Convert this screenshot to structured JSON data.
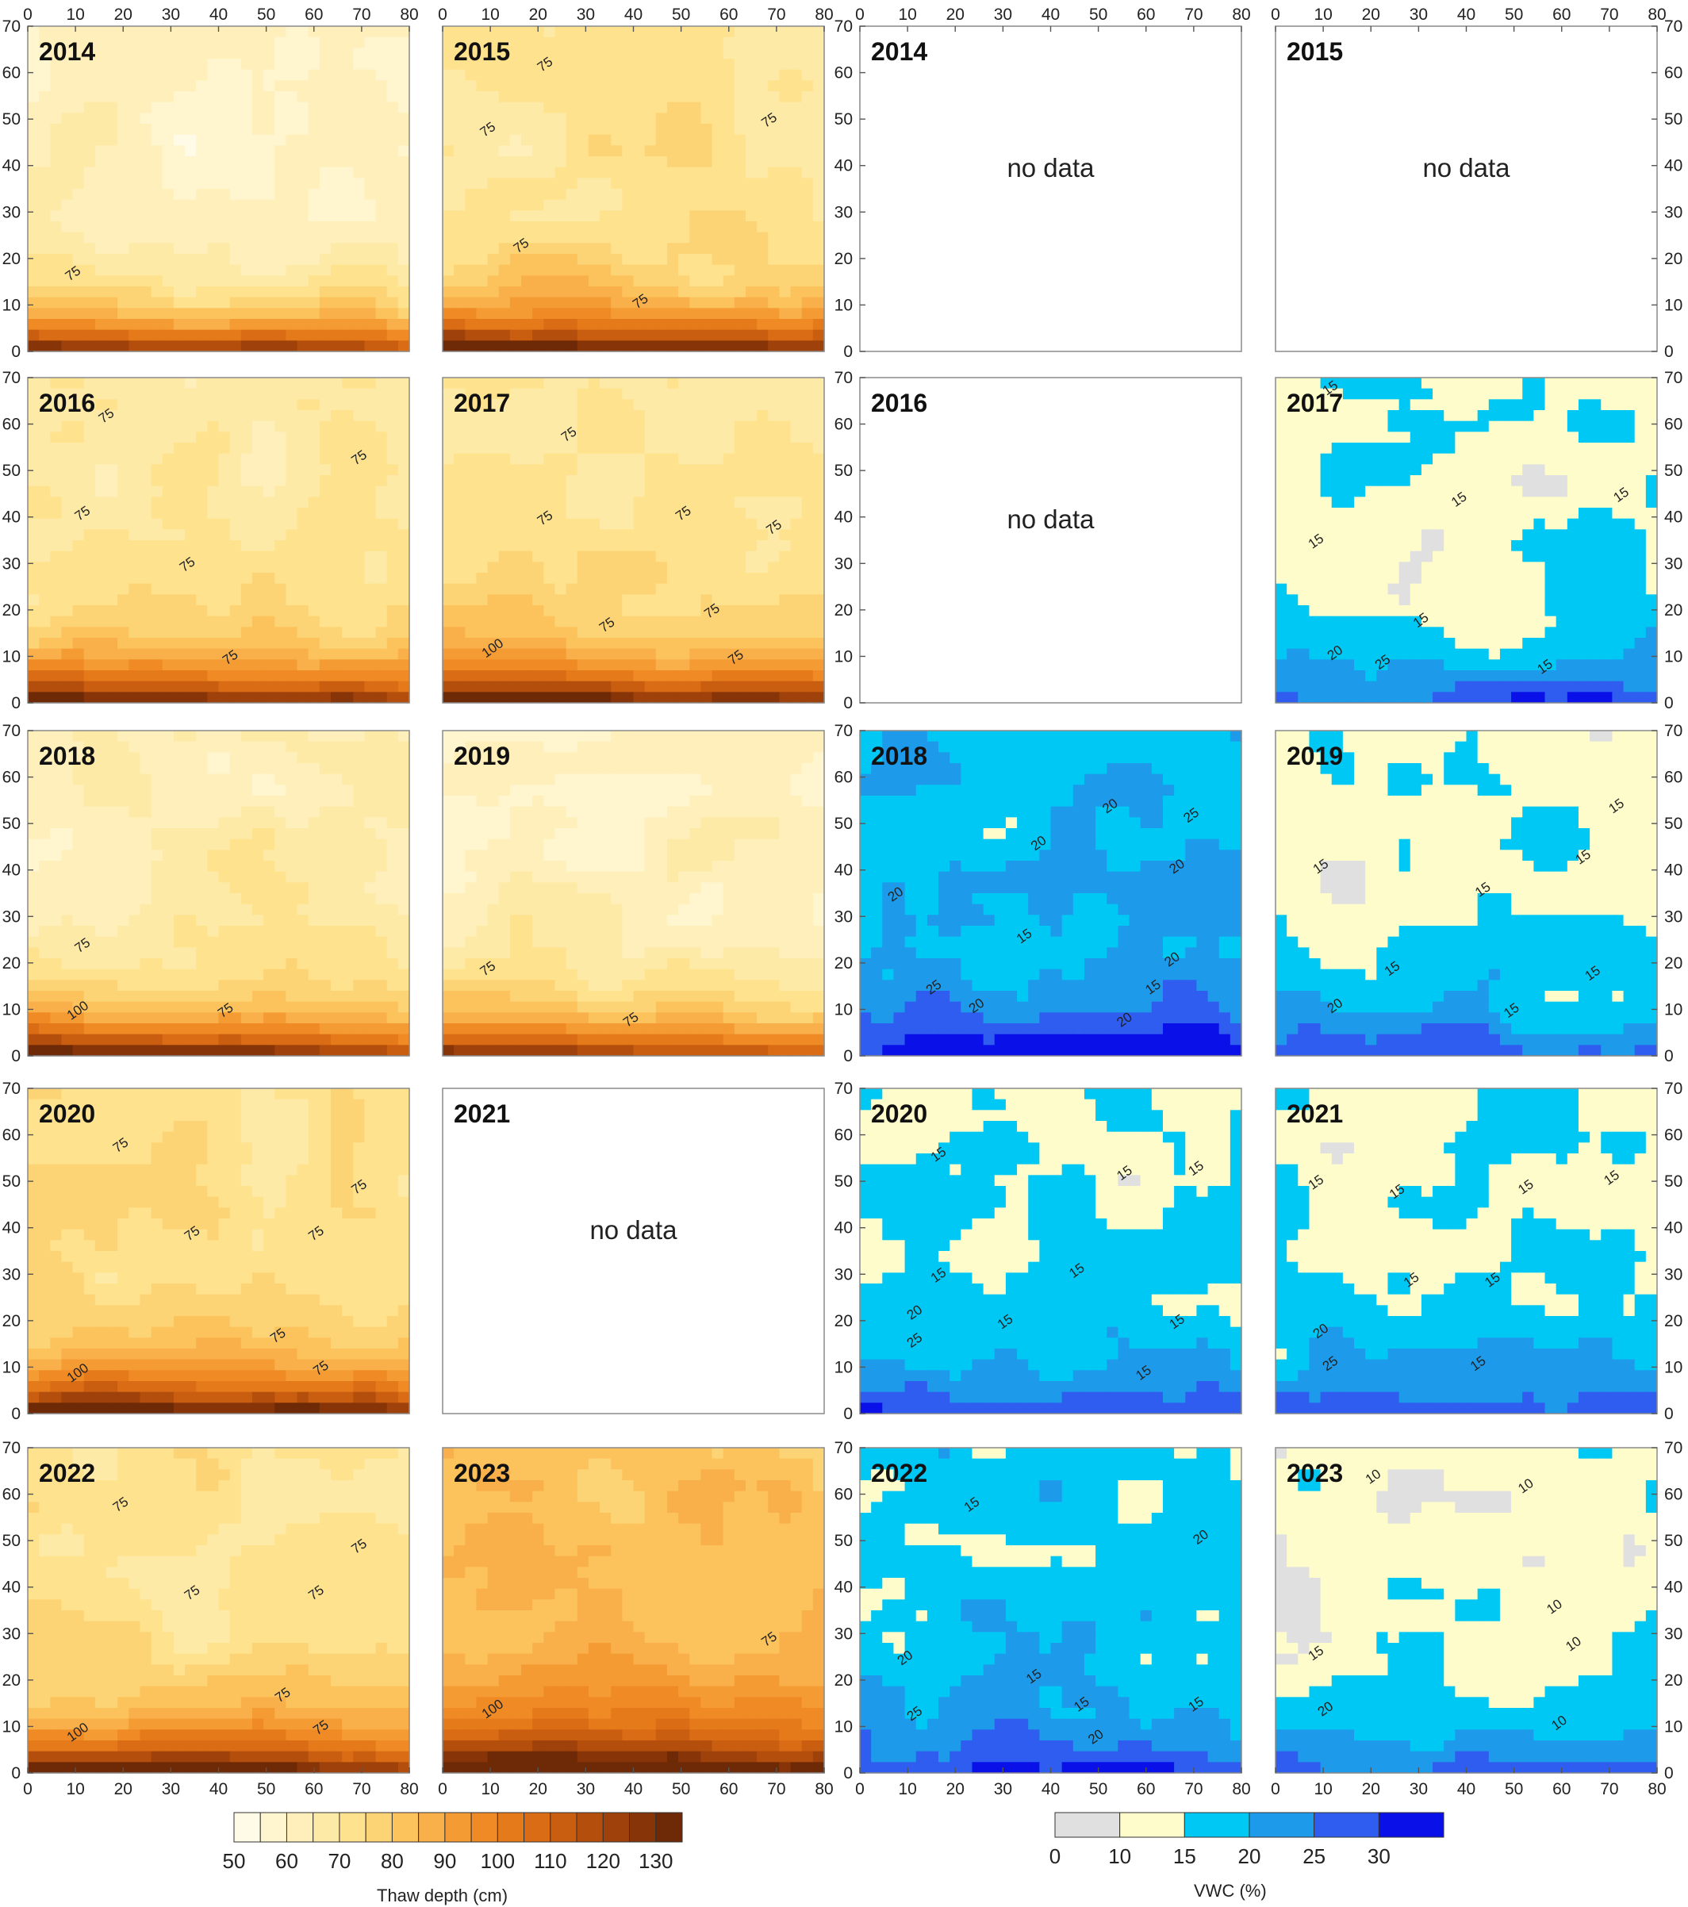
{
  "chart_data": {
    "type": "heatmap",
    "subtype": "contour",
    "x_axis": {
      "range": [
        0,
        80
      ],
      "ticks": [
        0,
        10,
        20,
        30,
        40,
        50,
        60,
        70,
        80
      ]
    },
    "y_axis": {
      "range": [
        0,
        70
      ],
      "ticks": [
        0,
        10,
        20,
        30,
        40,
        50,
        60,
        70
      ]
    },
    "grid": false,
    "thaw_depth": {
      "variable": "Thaw depth",
      "colorbar_label": "Thaw depth (cm)",
      "colorbar_ticks": [
        50,
        60,
        70,
        80,
        90,
        100,
        110,
        120,
        130
      ],
      "levels": [
        50,
        55,
        60,
        65,
        70,
        75,
        80,
        85,
        90,
        95,
        100,
        105,
        110,
        115,
        120,
        125,
        130,
        135
      ],
      "colors": [
        "#fffbe6",
        "#fff5cf",
        "#fff0bb",
        "#feeaa7",
        "#fee28d",
        "#fdd475",
        "#fcc35c",
        "#f9b04a",
        "#f59b34",
        "#ef8a25",
        "#e57a1b",
        "#d96c15",
        "#c95d10",
        "#b44e0c",
        "#9e410a",
        "#873508",
        "#6e2a06"
      ],
      "panels": [
        {
          "year": "2014",
          "no_data": false,
          "base": 66,
          "bias": -1,
          "contour_labels": [
            {
              "text": "75",
              "x": 10,
              "y": 16
            }
          ]
        },
        {
          "year": "2015",
          "no_data": false,
          "base": 72,
          "bias": 1,
          "contour_labels": [
            {
              "text": "75",
              "x": 22,
              "y": 61
            },
            {
              "text": "75",
              "x": 10,
              "y": 47
            },
            {
              "text": "75",
              "x": 69,
              "y": 49
            },
            {
              "text": "75",
              "x": 17,
              "y": 22
            },
            {
              "text": "75",
              "x": 42,
              "y": 10
            }
          ]
        },
        {
          "year": "2016",
          "no_data": false,
          "base": 71,
          "bias": 0,
          "contour_labels": [
            {
              "text": "75",
              "x": 17,
              "y": 61
            },
            {
              "text": "75",
              "x": 70,
              "y": 52
            },
            {
              "text": "75",
              "x": 12,
              "y": 40
            },
            {
              "text": "75",
              "x": 34,
              "y": 29
            },
            {
              "text": "75",
              "x": 43,
              "y": 9
            }
          ]
        },
        {
          "year": "2017",
          "no_data": false,
          "base": 72,
          "bias": 1,
          "contour_labels": [
            {
              "text": "75",
              "x": 27,
              "y": 57
            },
            {
              "text": "75",
              "x": 22,
              "y": 39
            },
            {
              "text": "75",
              "x": 51,
              "y": 40
            },
            {
              "text": "75",
              "x": 70,
              "y": 37
            },
            {
              "text": "75",
              "x": 35,
              "y": 16
            },
            {
              "text": "75",
              "x": 57,
              "y": 19
            },
            {
              "text": "75",
              "x": 62,
              "y": 9
            },
            {
              "text": "100",
              "x": 11,
              "y": 11
            }
          ]
        },
        {
          "year": "2018",
          "no_data": false,
          "base": 69,
          "bias": 0,
          "contour_labels": [
            {
              "text": "75",
              "x": 12,
              "y": 23
            },
            {
              "text": "100",
              "x": 11,
              "y": 9
            },
            {
              "text": "75",
              "x": 42,
              "y": 9
            }
          ]
        },
        {
          "year": "2019",
          "no_data": false,
          "base": 67,
          "bias": -1,
          "contour_labels": [
            {
              "text": "75",
              "x": 10,
              "y": 18
            },
            {
              "text": "75",
              "x": 40,
              "y": 7
            }
          ]
        },
        {
          "year": "2020",
          "no_data": false,
          "base": 75,
          "bias": 1,
          "contour_labels": [
            {
              "text": "75",
              "x": 20,
              "y": 57
            },
            {
              "text": "75",
              "x": 70,
              "y": 48
            },
            {
              "text": "75",
              "x": 35,
              "y": 38
            },
            {
              "text": "75",
              "x": 61,
              "y": 38
            },
            {
              "text": "75",
              "x": 53,
              "y": 16
            },
            {
              "text": "75",
              "x": 62,
              "y": 9
            },
            {
              "text": "100",
              "x": 11,
              "y": 8
            }
          ]
        },
        {
          "year": "2021",
          "no_data": true,
          "no_data_text": "no data"
        },
        {
          "year": "2022",
          "no_data": false,
          "base": 74,
          "bias": 1,
          "contour_labels": [
            {
              "text": "75",
              "x": 20,
              "y": 57
            },
            {
              "text": "75",
              "x": 70,
              "y": 48
            },
            {
              "text": "75",
              "x": 35,
              "y": 38
            },
            {
              "text": "75",
              "x": 61,
              "y": 38
            },
            {
              "text": "75",
              "x": 54,
              "y": 16
            },
            {
              "text": "75",
              "x": 62,
              "y": 9
            },
            {
              "text": "100",
              "x": 11,
              "y": 8
            }
          ]
        },
        {
          "year": "2023",
          "no_data": false,
          "base": 83,
          "bias": 2,
          "contour_labels": [
            {
              "text": "75",
              "x": 69,
              "y": 28
            },
            {
              "text": "100",
              "x": 11,
              "y": 13
            }
          ]
        }
      ]
    },
    "vwc": {
      "variable": "VWC",
      "colorbar_label": "VWC (%)",
      "colorbar_ticks": [
        0,
        10,
        15,
        20,
        25,
        30
      ],
      "levels": [
        0,
        10,
        15,
        20,
        25,
        30,
        35
      ],
      "colors": [
        "#e0e0e0",
        "#fffccc",
        "#00c8f5",
        "#1e9aeb",
        "#2f5df0",
        "#0a10e8"
      ],
      "panels": [
        {
          "year": "2014",
          "no_data": true,
          "no_data_text": "no data"
        },
        {
          "year": "2015",
          "no_data": true,
          "no_data_text": "no data"
        },
        {
          "year": "2016",
          "no_data": true,
          "no_data_text": "no data"
        },
        {
          "year": "2017",
          "no_data": false,
          "base": 14,
          "contour_labels": [
            {
              "text": "15",
              "x": 12,
              "y": 67
            },
            {
              "text": "15",
              "x": 39,
              "y": 43
            },
            {
              "text": "15",
              "x": 73,
              "y": 44
            },
            {
              "text": "15",
              "x": 9,
              "y": 34
            },
            {
              "text": "15",
              "x": 31,
              "y": 17
            },
            {
              "text": "20",
              "x": 13,
              "y": 10
            },
            {
              "text": "25",
              "x": 23,
              "y": 8
            },
            {
              "text": "15",
              "x": 57,
              "y": 7
            }
          ]
        },
        {
          "year": "2018",
          "no_data": false,
          "base": 20,
          "contour_labels": [
            {
              "text": "20",
              "x": 53,
              "y": 53
            },
            {
              "text": "25",
              "x": 70,
              "y": 51
            },
            {
              "text": "20",
              "x": 38,
              "y": 45
            },
            {
              "text": "20",
              "x": 67,
              "y": 40
            },
            {
              "text": "20",
              "x": 8,
              "y": 34
            },
            {
              "text": "15",
              "x": 35,
              "y": 25
            },
            {
              "text": "20",
              "x": 66,
              "y": 20
            },
            {
              "text": "15",
              "x": 62,
              "y": 14
            },
            {
              "text": "25",
              "x": 16,
              "y": 14
            },
            {
              "text": "20",
              "x": 25,
              "y": 10
            },
            {
              "text": "20",
              "x": 56,
              "y": 7
            }
          ]
        },
        {
          "year": "2019",
          "no_data": false,
          "base": 14,
          "contour_labels": [
            {
              "text": "15",
              "x": 72,
              "y": 53
            },
            {
              "text": "15",
              "x": 10,
              "y": 40
            },
            {
              "text": "15",
              "x": 65,
              "y": 42
            },
            {
              "text": "15",
              "x": 44,
              "y": 35
            },
            {
              "text": "15",
              "x": 25,
              "y": 18
            },
            {
              "text": "15",
              "x": 67,
              "y": 17
            },
            {
              "text": "20",
              "x": 13,
              "y": 10
            },
            {
              "text": "15",
              "x": 50,
              "y": 9
            }
          ]
        },
        {
          "year": "2020",
          "no_data": false,
          "base": 15,
          "contour_labels": [
            {
              "text": "15",
              "x": 17,
              "y": 55
            },
            {
              "text": "15",
              "x": 56,
              "y": 51
            },
            {
              "text": "15",
              "x": 71,
              "y": 52
            },
            {
              "text": "15",
              "x": 17,
              "y": 29
            },
            {
              "text": "15",
              "x": 46,
              "y": 30
            },
            {
              "text": "20",
              "x": 12,
              "y": 21
            },
            {
              "text": "15",
              "x": 31,
              "y": 19
            },
            {
              "text": "15",
              "x": 67,
              "y": 19
            },
            {
              "text": "25",
              "x": 12,
              "y": 15
            },
            {
              "text": "15",
              "x": 60,
              "y": 8
            }
          ]
        },
        {
          "year": "2021",
          "no_data": false,
          "base": 15,
          "contour_labels": [
            {
              "text": "15",
              "x": 9,
              "y": 49
            },
            {
              "text": "15",
              "x": 26,
              "y": 47
            },
            {
              "text": "15",
              "x": 53,
              "y": 48
            },
            {
              "text": "15",
              "x": 71,
              "y": 50
            },
            {
              "text": "15",
              "x": 29,
              "y": 28
            },
            {
              "text": "15",
              "x": 46,
              "y": 28
            },
            {
              "text": "20",
              "x": 10,
              "y": 17
            },
            {
              "text": "25",
              "x": 12,
              "y": 10
            },
            {
              "text": "15",
              "x": 43,
              "y": 10
            }
          ]
        },
        {
          "year": "2022",
          "no_data": false,
          "base": 18,
          "contour_labels": [
            {
              "text": "15",
              "x": 24,
              "y": 57
            },
            {
              "text": "20",
              "x": 72,
              "y": 50
            },
            {
              "text": "20",
              "x": 10,
              "y": 24
            },
            {
              "text": "15",
              "x": 37,
              "y": 20
            },
            {
              "text": "15",
              "x": 47,
              "y": 14
            },
            {
              "text": "15",
              "x": 71,
              "y": 14
            },
            {
              "text": "25",
              "x": 12,
              "y": 12
            },
            {
              "text": "20",
              "x": 50,
              "y": 7
            }
          ]
        },
        {
          "year": "2023",
          "no_data": false,
          "base": 13,
          "contour_labels": [
            {
              "text": "10",
              "x": 21,
              "y": 63
            },
            {
              "text": "10",
              "x": 53,
              "y": 61
            },
            {
              "text": "10",
              "x": 59,
              "y": 35
            },
            {
              "text": "10",
              "x": 63,
              "y": 27
            },
            {
              "text": "15",
              "x": 9,
              "y": 25
            },
            {
              "text": "20",
              "x": 11,
              "y": 13
            },
            {
              "text": "10",
              "x": 60,
              "y": 10
            }
          ]
        }
      ]
    }
  }
}
